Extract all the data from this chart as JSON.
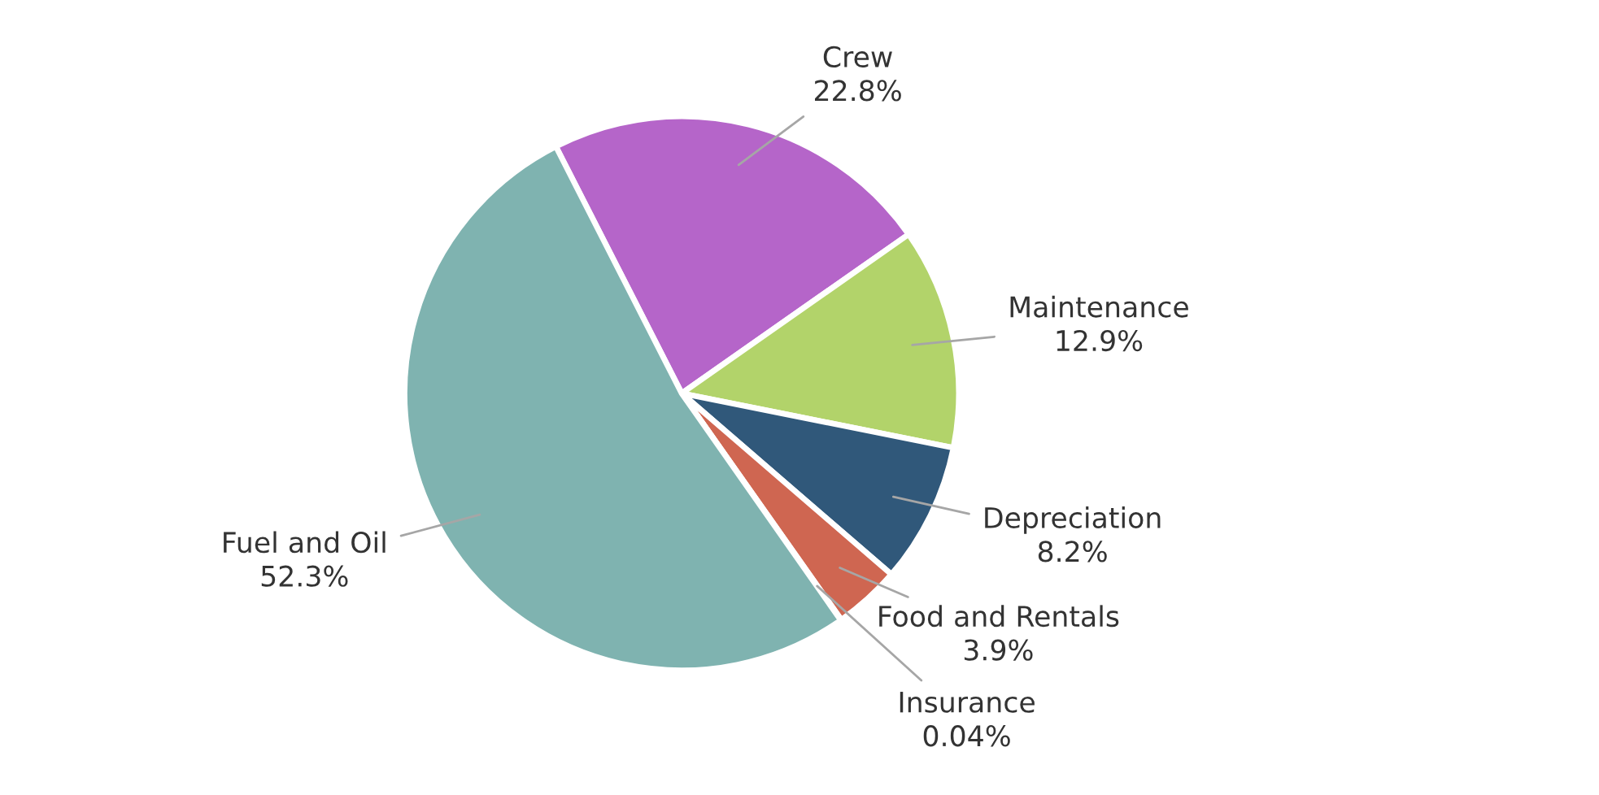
{
  "chart_data": {
    "type": "pie",
    "categories": [
      "Crew",
      "Maintenance",
      "Depreciation",
      "Food and Rentals",
      "Insurance",
      "Fuel and Oil"
    ],
    "values": [
      22.8,
      12.9,
      8.2,
      3.9,
      0.04,
      52.3
    ],
    "colors": [
      "#b565c9",
      "#b2d36a",
      "#30587a",
      "#cf6651",
      "#d9d9d9",
      "#7fb3b0"
    ],
    "value_labels": [
      "22.8%",
      "12.9%",
      "8.2%",
      "3.9%",
      "0.04%",
      "52.3%"
    ]
  }
}
